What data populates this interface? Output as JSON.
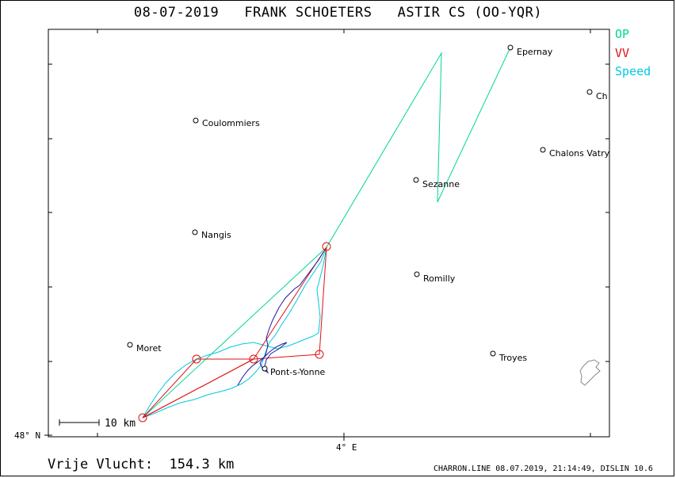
{
  "title": "08-07-2019   FRANK SCHOETERS   ASTIR CS (OO-YQR)",
  "legend": [
    {
      "label": "OP",
      "color": "#00d49a"
    },
    {
      "label": "VV",
      "color": "#e01010"
    },
    {
      "label": "Speed",
      "color": "#00c8e0"
    }
  ],
  "axis": {
    "lat_label": "48° N",
    "lon_label": "4° E"
  },
  "scale_label": "10  km",
  "places": [
    {
      "name": "Epernay"
    },
    {
      "name": "Ch"
    },
    {
      "name": "Coulommiers"
    },
    {
      "name": "Chalons Vatry"
    },
    {
      "name": "Sezanne"
    },
    {
      "name": "Nangis"
    },
    {
      "name": "Romilly"
    },
    {
      "name": "Moret"
    },
    {
      "name": "Troyes"
    },
    {
      "name": "Pont-s-Yonne"
    }
  ],
  "footer": {
    "distance_text": "Vrije Vlucht:  154.3 km",
    "credit": "CHARRON.LINE 08.07.2019, 21:14:49, DISLIN 10.6"
  },
  "colors": {
    "op": "#00d49a",
    "vv": "#e01010",
    "speed": "#00c8e0",
    "track_low": "#1a1aa0",
    "frame": "#000000"
  }
}
